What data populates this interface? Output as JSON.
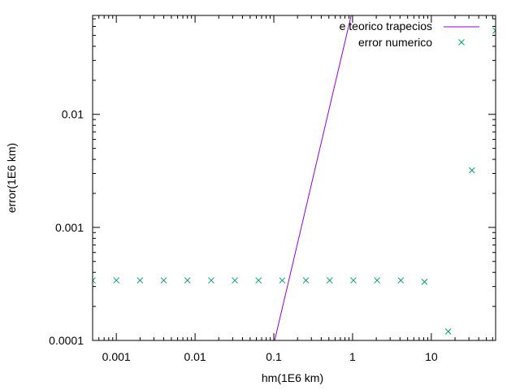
{
  "chart_data": {
    "type": "scatter",
    "title": "",
    "xlabel": "hm(1E6 km)",
    "ylabel": "error(1E6 km)",
    "xscale": "log",
    "yscale": "log",
    "xlim": [
      0.0005,
      65.536
    ],
    "ylim": [
      0.0001,
      0.075
    ],
    "grid": false,
    "legend_position": "top-right",
    "x_ticks": [
      {
        "value": 0.001,
        "label": "0.001"
      },
      {
        "value": 0.01,
        "label": "0.01"
      },
      {
        "value": 0.1,
        "label": "0.1"
      },
      {
        "value": 1,
        "label": "1"
      },
      {
        "value": 10,
        "label": "10"
      }
    ],
    "y_ticks": [
      {
        "value": 0.0001,
        "label": "0.0001"
      },
      {
        "value": 0.001,
        "label": "0.001"
      },
      {
        "value": 0.01,
        "label": "0.01"
      }
    ],
    "series": [
      {
        "name": "e teorico trapecios",
        "kind": "line",
        "color": "#9400d3",
        "x": [
          0.1025,
          0.96
        ],
        "y": [
          0.0001,
          0.075
        ]
      },
      {
        "name": "error numerico",
        "kind": "scatter",
        "marker": "x",
        "color": "#009e73",
        "x": [
          0.0005,
          0.001,
          0.002,
          0.004,
          0.008,
          0.016,
          0.032,
          0.064,
          0.128,
          0.256,
          0.512,
          1.024,
          2.048,
          4.096,
          8.192,
          16.384,
          32.768,
          65.536
        ],
        "y": [
          0.00034,
          0.00034,
          0.00034,
          0.00034,
          0.00034,
          0.00034,
          0.00034,
          0.00034,
          0.00034,
          0.00034,
          0.00034,
          0.00034,
          0.00034,
          0.00034,
          0.00033,
          0.00012,
          0.0032,
          0.055
        ]
      }
    ]
  }
}
